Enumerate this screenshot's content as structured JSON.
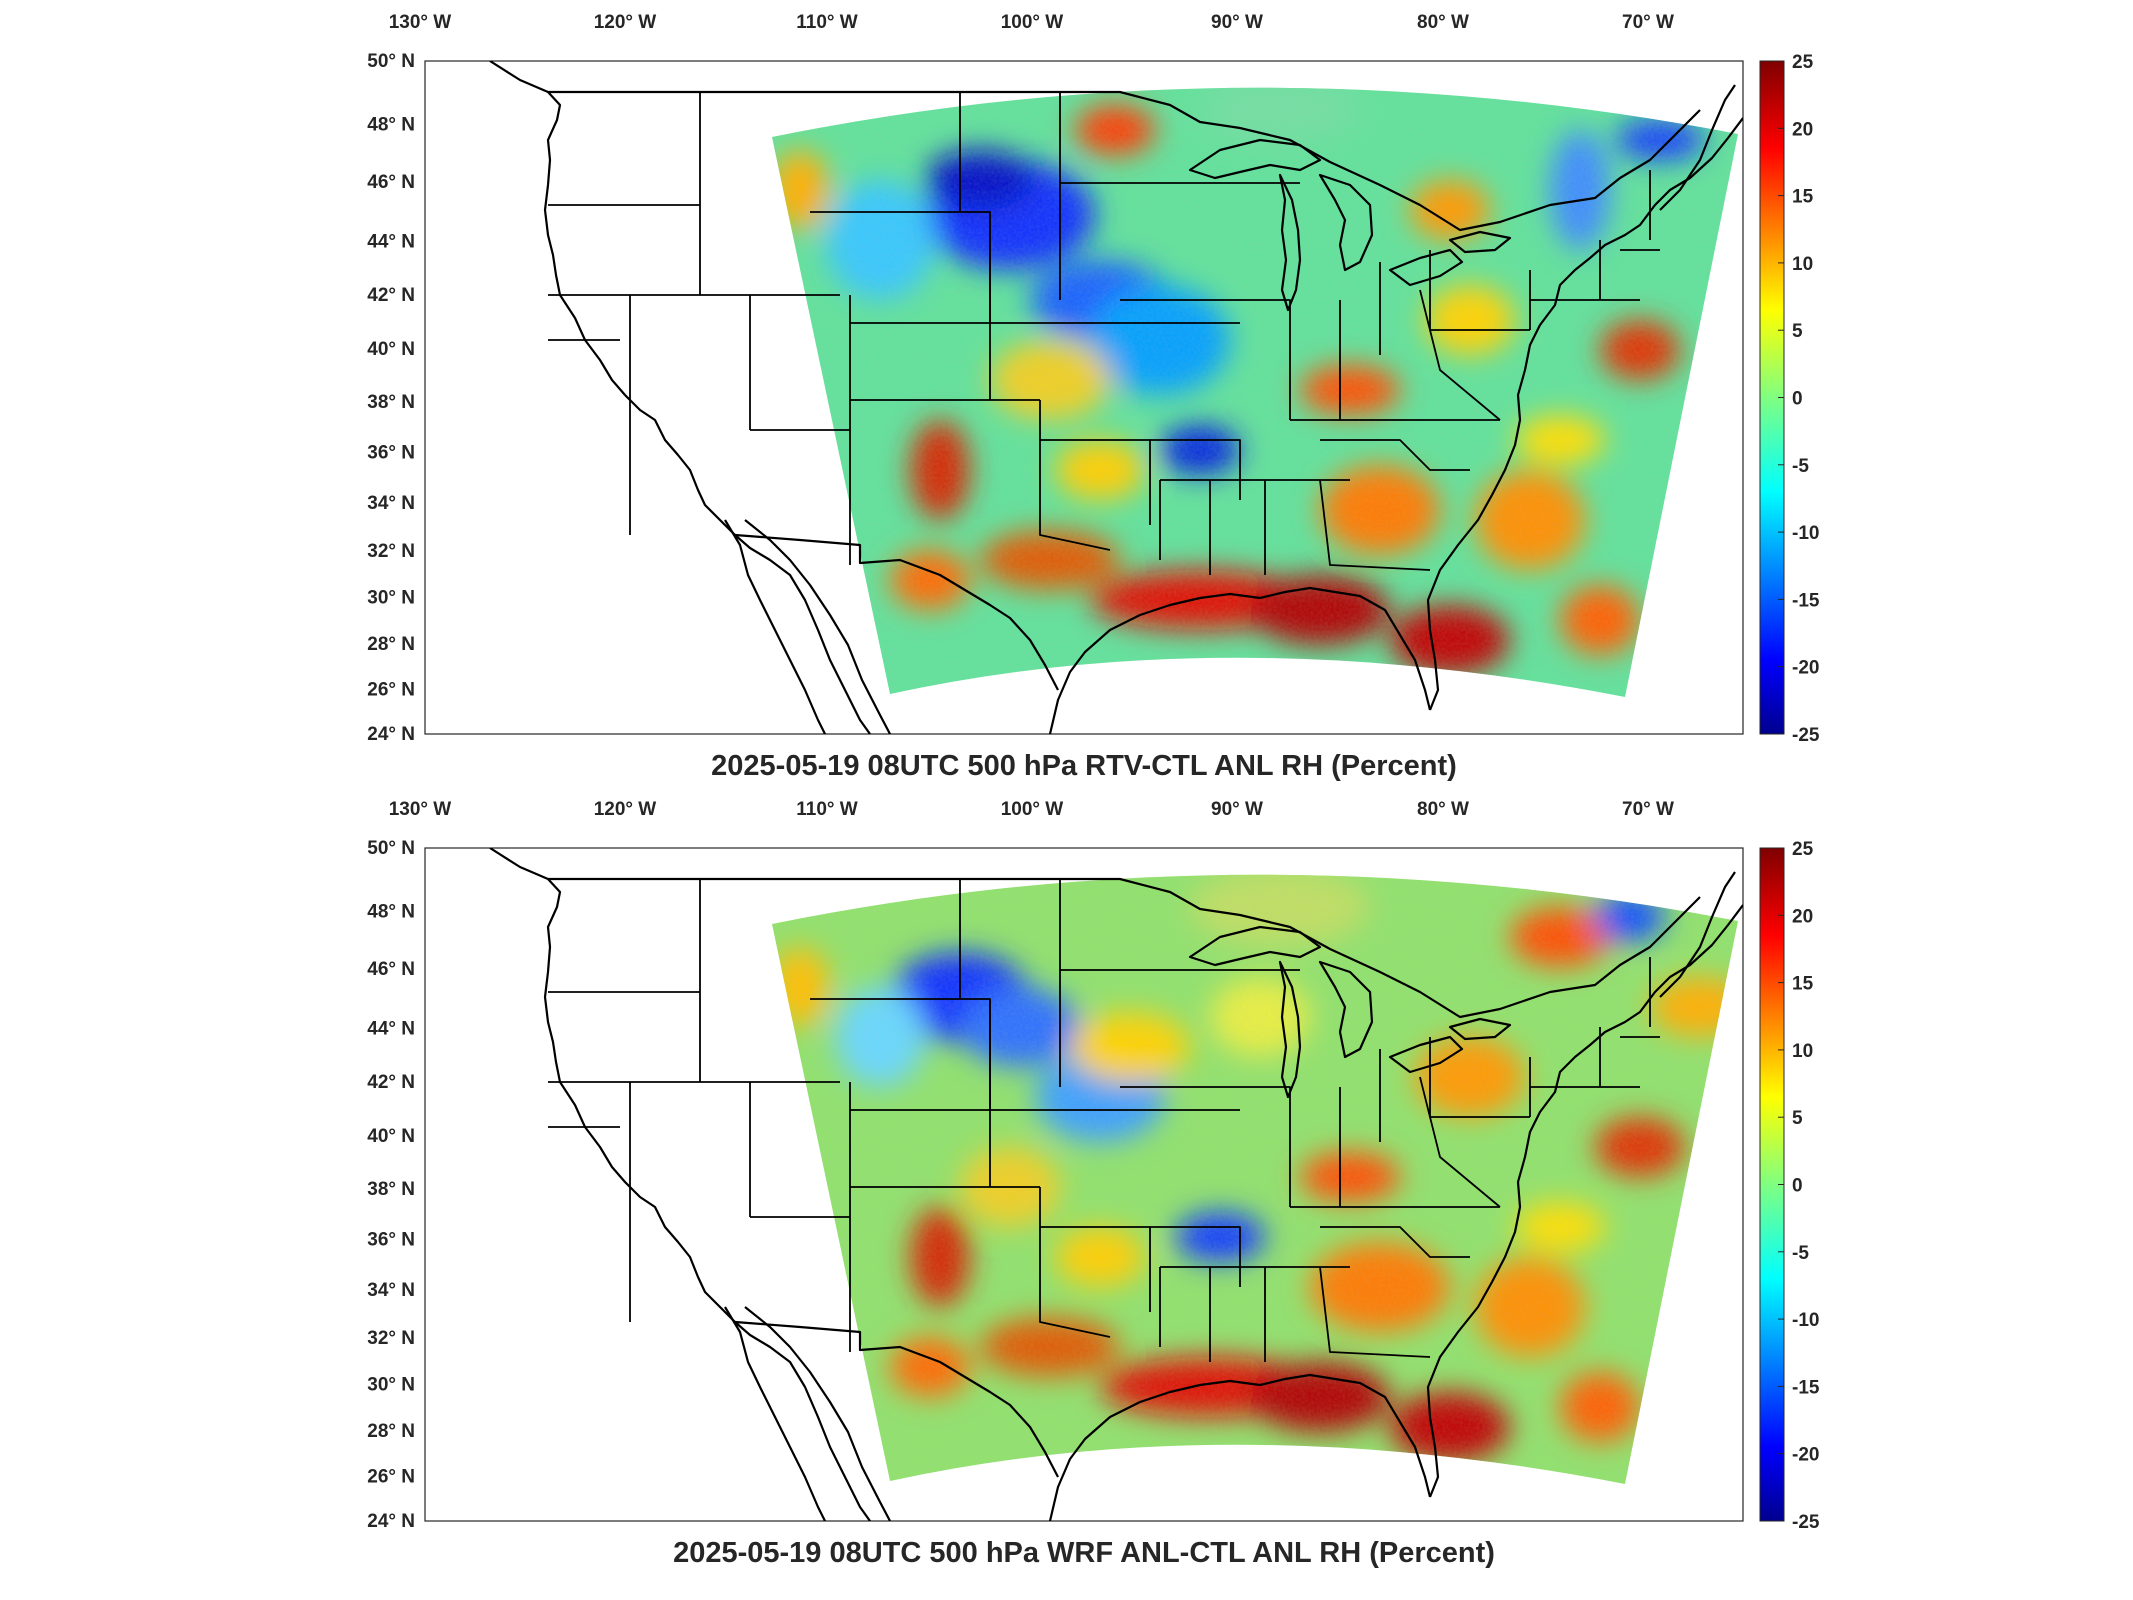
{
  "panels": [
    {
      "title": "2025-05-19 08UTC 500 hPa RTV-CTL ANL RH (Percent)",
      "variant": "rtv"
    },
    {
      "title": "2025-05-19 08UTC 500 hPa WRF ANL-CTL ANL RH (Percent)",
      "variant": "wrf"
    }
  ],
  "lon_labels": [
    "130° W",
    "120° W",
    "110° W",
    "100° W",
    "90° W",
    "80° W",
    "70° W"
  ],
  "lat_labels": [
    "50° N",
    "48° N",
    "46° N",
    "44° N",
    "42° N",
    "40° N",
    "38° N",
    "36° N",
    "34° N",
    "32° N",
    "30° N",
    "28° N",
    "26° N",
    "24° N"
  ],
  "colorbar": {
    "ticks": [
      "25",
      "20",
      "15",
      "10",
      "5",
      "0",
      "-5",
      "-10",
      "-15",
      "-20",
      "-25"
    ],
    "range": [
      -25,
      25
    ],
    "colormap": "jet",
    "colors": [
      "#00008f",
      "#0000ff",
      "#0080ff",
      "#00ffff",
      "#80ff80",
      "#ffff00",
      "#ff8000",
      "#ff0000",
      "#800000"
    ]
  }
}
